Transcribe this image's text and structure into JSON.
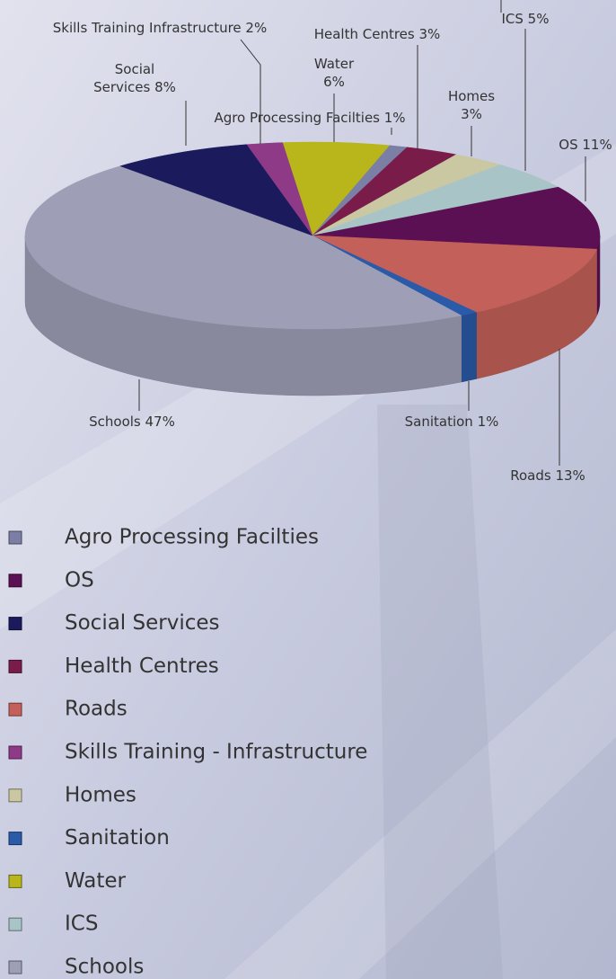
{
  "chart_data": {
    "type": "pie",
    "categories": [
      "Agro Processing Facilties",
      "OS",
      "Social Services",
      "Health Centres",
      "Roads",
      "Skills Training - Infrastructure",
      "Homes",
      "Sanitation",
      "Water",
      "ICS",
      "Schools"
    ],
    "values": [
      1,
      11,
      8,
      3,
      13,
      2,
      3,
      1,
      6,
      5,
      47
    ],
    "value_labels": [
      "Agro Processing Facilties 1%",
      "OS 11%",
      "Social\nServices 8%",
      "Health Centres 3%",
      "Roads 13%",
      "Skills Training Infrastructure 2%",
      "Homes\n3%",
      "Sanitation 1%",
      "Water\n6%",
      "ICS 5%",
      "Schools 47%"
    ],
    "colors": [
      "#7b7fa6",
      "#5a1052",
      "#1b1a5c",
      "#7a1c4a",
      "#c4605a",
      "#8e3a86",
      "#c9c8a2",
      "#2a5aa8",
      "#b8b61a",
      "#a8c4c6",
      "#9e9fb6"
    ],
    "legend": "bottom-left",
    "style": "3d"
  }
}
